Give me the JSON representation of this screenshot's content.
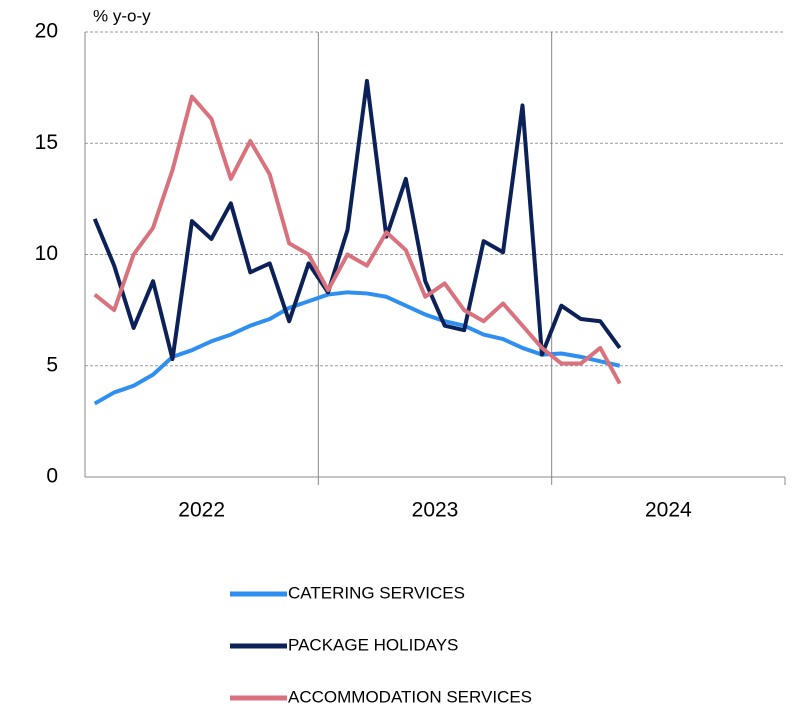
{
  "chart_data": {
    "type": "line",
    "y_label": "% y-o-y",
    "x_groups": [
      "2022",
      "2023",
      "2024"
    ],
    "categories": [
      null,
      null,
      null,
      null,
      null,
      null,
      null,
      null,
      null,
      null,
      null,
      null,
      null,
      null,
      null,
      null,
      null,
      null,
      null,
      null,
      null,
      null,
      null,
      null,
      null,
      null,
      null,
      null,
      null,
      null,
      null,
      null,
      null,
      null,
      null,
      null
    ],
    "series": [
      {
        "name": "CATERING SERVICES",
        "color": "#2e8ff0",
        "values": [
          3.3,
          3.8,
          4.1,
          4.6,
          5.4,
          5.7,
          6.1,
          6.4,
          6.8,
          7.1,
          7.6,
          7.9,
          8.2,
          8.3,
          8.25,
          8.1,
          7.7,
          7.3,
          7.0,
          6.8,
          6.4,
          6.2,
          5.8,
          5.5,
          5.55,
          5.4,
          5.2,
          5.0,
          null,
          null,
          null,
          null,
          null,
          null,
          null,
          null
        ]
      },
      {
        "name": "PACKAGE HOLIDAYS",
        "color": "#0b2157",
        "values": [
          11.6,
          9.5,
          6.7,
          8.8,
          5.3,
          11.5,
          10.7,
          12.3,
          9.2,
          9.6,
          7.0,
          9.6,
          8.3,
          11.1,
          17.8,
          10.8,
          13.4,
          8.8,
          6.8,
          6.6,
          10.6,
          10.1,
          16.7,
          5.5,
          7.7,
          7.1,
          7.0,
          5.8,
          null,
          null,
          null,
          null,
          null,
          null,
          null,
          null
        ]
      },
      {
        "name": "ACCOMMODATION SERVICES",
        "color": "#d9727c",
        "values": [
          8.2,
          7.5,
          10.0,
          11.2,
          13.8,
          17.1,
          16.1,
          13.4,
          15.1,
          13.6,
          10.5,
          10.0,
          8.4,
          10.0,
          9.5,
          11.0,
          10.2,
          8.1,
          8.7,
          7.5,
          7.0,
          7.8,
          6.8,
          5.8,
          5.1,
          5.1,
          5.8,
          4.2,
          null,
          null,
          null,
          null,
          null,
          null,
          null,
          null
        ]
      }
    ],
    "ylim": [
      0,
      20
    ],
    "yticks": [
      0,
      5,
      10,
      15,
      20
    ],
    "grid": true
  }
}
